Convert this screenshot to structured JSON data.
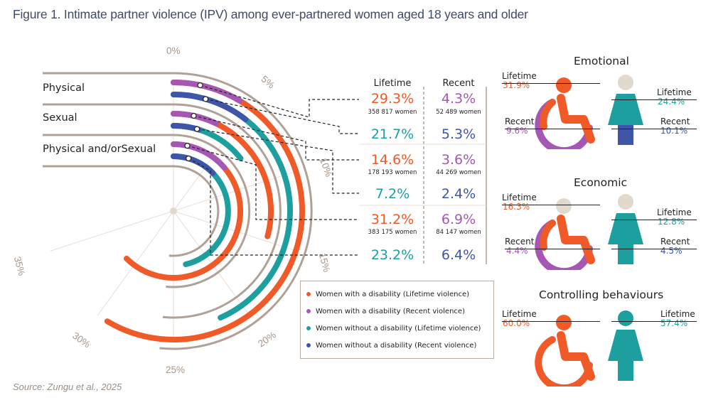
{
  "title": "Figure 1. Intimate partner violence (IPV) among ever-partnered women aged 18 years and older",
  "source": "Source: Zungu et al., 2025",
  "colors": {
    "wd_lifetime": "#f05a28",
    "wd_recent": "#a558b3",
    "wo_lifetime": "#1d9fa0",
    "wo_recent": "#3f56a8",
    "grey": "#b0a196",
    "womanhead": "#e2d9cd"
  },
  "chart_data": {
    "type": "radial-bar",
    "axis_ticks": [
      "0%",
      "5%",
      "10%",
      "15%",
      "20%",
      "25%",
      "30%",
      "35%"
    ],
    "axis_range": [
      0,
      35
    ],
    "categories": [
      "Physical",
      "Sexual",
      "Physical and/orSexual"
    ],
    "columns": [
      "Lifetime",
      "Recent"
    ],
    "series": [
      {
        "name": "Women with a disability (Lifetime violence)",
        "values": [
          29.3,
          14.6,
          31.2
        ]
      },
      {
        "name": "Women with a disability (Recent violence)",
        "values": [
          4.3,
          3.6,
          6.9
        ]
      },
      {
        "name": "Women without a disability (Lifetime violence)",
        "values": [
          21.7,
          7.2,
          23.2
        ]
      },
      {
        "name": "Women without a disability (Recent violence)",
        "values": [
          5.3,
          2.4,
          6.4
        ]
      }
    ],
    "values_table": [
      {
        "lifetime": "29.3%",
        "lifetime_count": "358 817 women",
        "recent": "4.3%",
        "recent_count": "52 489 women"
      },
      {
        "lifetime": "21.7%",
        "lifetime_count": "",
        "recent": "5.3%",
        "recent_count": ""
      },
      {
        "lifetime": "14.6%",
        "lifetime_count": "178 193 women",
        "recent": "3.6%",
        "recent_count": "44 269 women"
      },
      {
        "lifetime": "7.2%",
        "lifetime_count": "",
        "recent": "2.4%",
        "recent_count": ""
      },
      {
        "lifetime": "31.2%",
        "lifetime_count": "383 175 women",
        "recent": "6.9%",
        "recent_count": "84 147 women"
      },
      {
        "lifetime": "23.2%",
        "lifetime_count": "",
        "recent": "6.4%",
        "recent_count": ""
      }
    ]
  },
  "panels": [
    {
      "title": "Emotional",
      "dis_lifetime_label": "Lifetime",
      "dis_lifetime": "31.9%",
      "dis_recent_label": "Recent",
      "dis_recent": "9.6%",
      "wo_lifetime_label": "Lifetime",
      "wo_lifetime": "24.4%",
      "wo_recent_label": "Recent",
      "wo_recent": "10.1%",
      "lifetime_share": 0.319,
      "recent_share": 0.096
    },
    {
      "title": "Economic",
      "dis_lifetime_label": "Lifetime",
      "dis_lifetime": "16.3%",
      "dis_recent_label": "Recent",
      "dis_recent": "4.4%",
      "wo_lifetime_label": "Lifetime",
      "wo_lifetime": "12.8%",
      "wo_recent_label": "Recent",
      "wo_recent": "4.5%",
      "lifetime_share": 0.163,
      "recent_share": 0.044
    },
    {
      "title": "Controlling behaviours",
      "dis_lifetime_label": "Lifetime",
      "dis_lifetime": "60.0%",
      "wo_lifetime_label": "Lifetime",
      "wo_lifetime": "57.4%",
      "lifetime_share": 0.6
    }
  ]
}
